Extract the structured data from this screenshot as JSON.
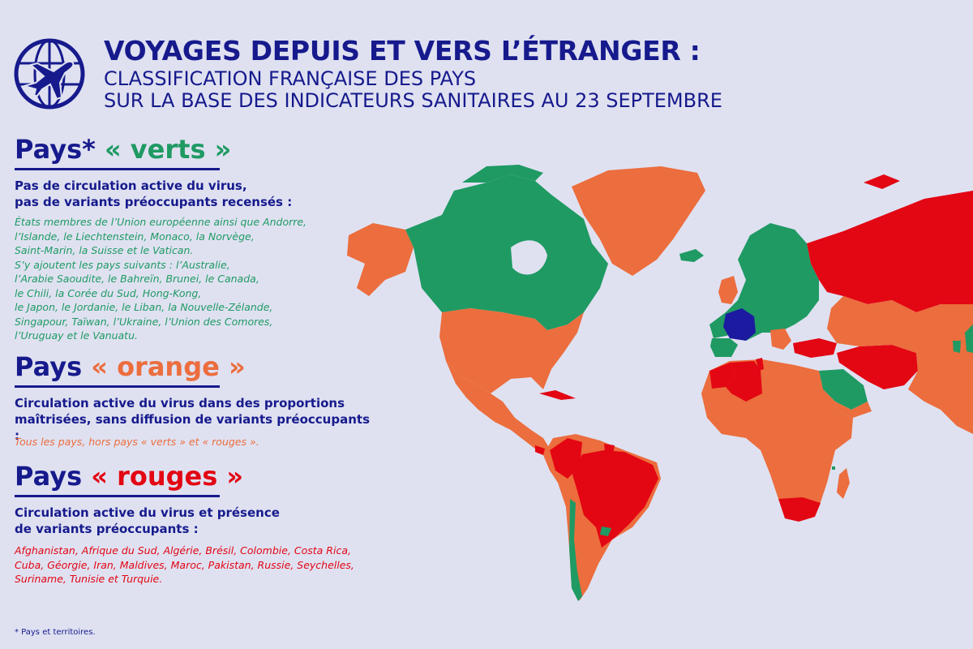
{
  "header": {
    "title": "VOYAGES DEPUIS ET VERS L’ÉTRANGER :",
    "subtitle_line1": "CLASSIFICATION FRANÇAISE DES PAYS",
    "subtitle_line2": "SUR LA BASE DES INDICATEURS SANITAIRES AU 23 SEPTEMBRE",
    "logo_icon": "plane-globe-icon"
  },
  "sections": {
    "green": {
      "title_prefix": "Pays*",
      "title_label": "« verts »",
      "description_line1": "Pas de circulation active du virus,",
      "description_line2": "pas de variants préoccupants recensés :",
      "body": [
        "États membres de l’Union européenne ainsi que Andorre,",
        "l’Islande, le Liechtenstein, Monaco, la Norvège,",
        "Saint-Marin, la Suisse et le Vatican.",
        "S’y ajoutent les pays suivants : l’Australie,",
        "l’Arabie Saoudite, le Bahreïn, Brunei, le Canada,",
        "le Chili, la Corée du Sud, Hong-Kong,",
        "le Japon, le Jordanie, le Liban, la Nouvelle-Zélande,",
        "Singapour, Taïwan, l’Ukraine, l’Union des Comores,",
        "l’Uruguay et le Vanuatu."
      ]
    },
    "orange": {
      "title_prefix": "Pays",
      "title_label": "« orange »",
      "description_line1": "Circulation active du virus dans des proportions",
      "description_line2": "maîtrisées, sans diffusion de variants préoccupants :",
      "body": [
        "Tous les pays, hors pays « verts » et « rouges »."
      ]
    },
    "red": {
      "title_prefix": "Pays",
      "title_label": "« rouges »",
      "description_line1": "Circulation active du virus et présence",
      "description_line2": "de variants préoccupants :",
      "body": [
        "Afghanistan, Afrique du Sud, Algérie, Brésil, Colombie, Costa Rica,",
        "Cuba, Géorgie, Iran, Maldives, Maroc, Pakistan, Russie, Seychelles,",
        "Suriname, Tunisie et Turquie."
      ]
    }
  },
  "footnote": "* Pays et territoires.",
  "colors": {
    "background": "#dfe1f1",
    "navy": "#161a8c",
    "green": "#1f9a63",
    "orange": "#ec6d3d",
    "red": "#e30613",
    "france": "#1c1aa0"
  }
}
